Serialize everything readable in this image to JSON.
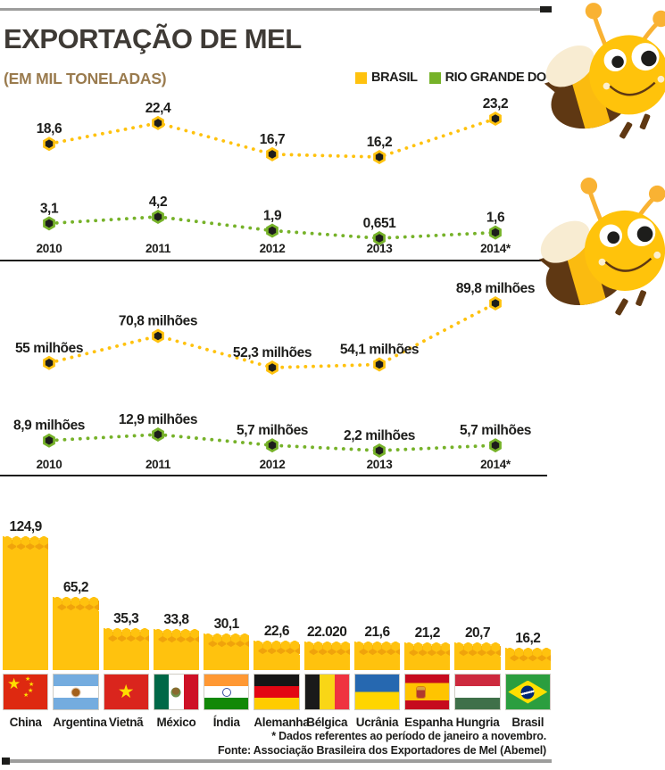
{
  "header": {
    "title": "EXPORTAÇÃO DE MEL",
    "subtitle": "(EM MIL TONELADAS)",
    "legend": [
      {
        "label": "BRASIL",
        "color": "#FFC20E"
      },
      {
        "label": "RIO GRANDE DO SUL",
        "color": "#76B229"
      }
    ]
  },
  "chart_data": [
    {
      "type": "line",
      "x": [
        "2010",
        "2011",
        "2012",
        "2013",
        "2014*"
      ],
      "series": [
        {
          "name": "Brasil",
          "color": "#FFC20E",
          "values": [
            18.6,
            22.4,
            16.7,
            16.2,
            23.2
          ],
          "labels": [
            "18,6",
            "22,4",
            "16,7",
            "16,2",
            "23,2"
          ]
        },
        {
          "name": "Rio Grande do Sul",
          "color": "#76B229",
          "values": [
            3.1,
            4.2,
            1.9,
            0.651,
            1.6
          ],
          "labels": [
            "3,1",
            "4,2",
            "1,9",
            "0,651",
            "1,6"
          ]
        }
      ],
      "line_style": "dotted",
      "legend_position": "top-right",
      "grid": false
    },
    {
      "type": "line",
      "x": [
        "2010",
        "2011",
        "2012",
        "2013",
        "2014*"
      ],
      "series": [
        {
          "name": "Brasil",
          "color": "#FFC20E",
          "values": [
            55,
            70.8,
            52.3,
            54.1,
            89.8
          ],
          "labels": [
            "55 milhões",
            "70,8 milhões",
            "52,3 milhões",
            "54,1 milhões",
            "89,8 milhões"
          ]
        },
        {
          "name": "Rio Grande do Sul",
          "color": "#76B229",
          "values": [
            8.9,
            12.9,
            5.7,
            2.2,
            5.7
          ],
          "labels": [
            "8,9 milhões",
            "12,9 milhões",
            "5,7 milhões",
            "2,2 milhões",
            "5,7 milhões"
          ]
        }
      ],
      "line_style": "dotted",
      "grid": false
    },
    {
      "type": "bar",
      "categories": [
        "China",
        "Argentina",
        "Vietnã",
        "México",
        "Índia",
        "Alemanha",
        "Bélgica",
        "Ucrânia",
        "Espanha",
        "Hungria",
        "Brasil"
      ],
      "values": [
        124.9,
        65.2,
        35.3,
        33.8,
        30.1,
        22.6,
        22.02,
        21.6,
        21.2,
        20.7,
        16.2
      ],
      "labels": [
        "124,9",
        "65,2",
        "35,3",
        "33,8",
        "30,1",
        "22,6",
        "22.020",
        "21,6",
        "21,2",
        "20,7",
        "16,2"
      ],
      "bar_color": "#FFC20E",
      "flags": [
        "china",
        "argentina",
        "vietnam",
        "mexico",
        "india",
        "germany",
        "belgium",
        "ukraine",
        "spain",
        "hungary",
        "brazil"
      ],
      "grid": false
    }
  ],
  "footer": {
    "note": "* Dados referentes ao período de janeiro a novembro.",
    "source": "Fonte: Associação Brasileira dos Exportadores de Mel (Abemel)"
  }
}
